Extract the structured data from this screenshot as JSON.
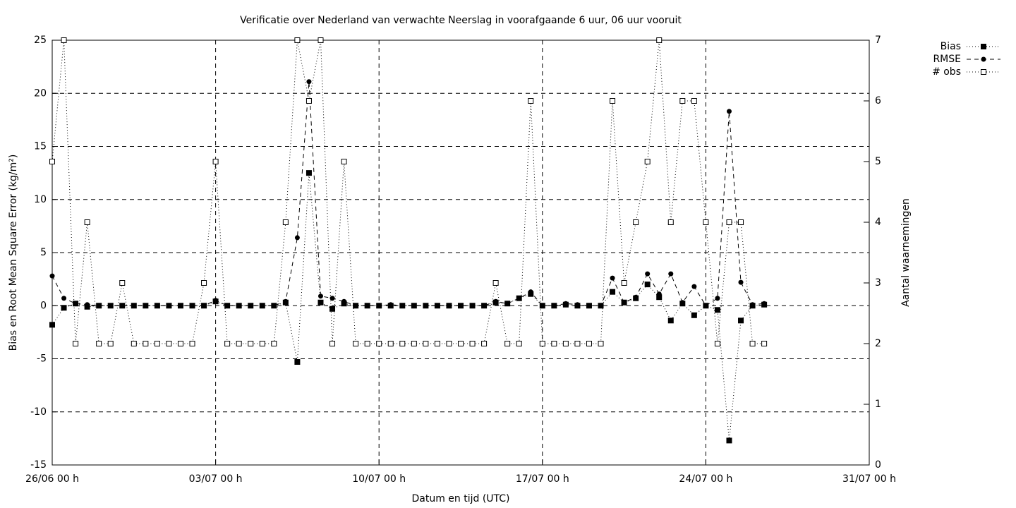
{
  "chart_data": {
    "type": "line",
    "title": "Verificatie over Nederland van verwachte Neerslag in voorafgaande 6 uur, 06 uur vooruit",
    "xlabel": "Datum en tijd (UTC)",
    "ylabel": "Bias en Root Mean Square Error (kg/m²)",
    "y2label": "Aantal waarnemingen",
    "x": [
      0,
      0.5,
      1,
      1.5,
      2,
      2.5,
      3,
      3.5,
      4,
      4.5,
      5,
      5.5,
      6,
      6.5,
      7,
      7.5,
      8,
      8.5,
      9,
      9.5,
      10,
      10.5,
      11,
      11.5,
      12,
      12.5,
      13,
      13.5,
      14,
      14.5,
      15,
      15.5,
      16,
      16.5,
      17,
      17.5,
      18,
      18.5,
      19,
      19.5,
      20,
      20.5,
      21,
      21.5,
      22,
      22.5,
      23,
      23.5,
      24,
      24.5,
      25,
      25.5,
      26,
      26.5,
      27,
      27.5,
      28,
      28.5,
      29,
      29.5,
      30,
      30.5
    ],
    "xlim": [
      0,
      35
    ],
    "xticks": [
      {
        "value": 0,
        "label": "26/06 00 h"
      },
      {
        "value": 7,
        "label": "03/07 00 h"
      },
      {
        "value": 14,
        "label": "10/07 00 h"
      },
      {
        "value": 21,
        "label": "17/07 00 h"
      },
      {
        "value": 28,
        "label": "24/07 00 h"
      },
      {
        "value": 35,
        "label": "31/07 00 h"
      }
    ],
    "ylim": [
      -15,
      25
    ],
    "yticks": [
      -15,
      -10,
      -5,
      0,
      5,
      10,
      15,
      20,
      25
    ],
    "y2lim": [
      0,
      7
    ],
    "y2ticks": [
      0,
      1,
      2,
      3,
      4,
      5,
      6,
      7
    ],
    "grid": true,
    "legend": "top-right",
    "series": [
      {
        "name": "Bias",
        "color": "#000000",
        "dash": "dotted",
        "marker": "filled-square",
        "values": [
          -1.8,
          -0.2,
          0.2,
          -0.1,
          0,
          0,
          0,
          0,
          0,
          0,
          0,
          0,
          0,
          0,
          0.4,
          0,
          0,
          0,
          0,
          0,
          0.3,
          -5.3,
          12.5,
          0.3,
          -0.3,
          0.2,
          0,
          0,
          0,
          0,
          0,
          0,
          0,
          0,
          0,
          0,
          0,
          0,
          0.3,
          0.2,
          0.7,
          1.1,
          0,
          0,
          0.1,
          0,
          0,
          0,
          1.3,
          0.3,
          0.7,
          2.0,
          0.8,
          -1.4,
          0.2,
          -0.9,
          0,
          -0.4,
          -12.7,
          -1.4,
          0,
          0.1
        ]
      },
      {
        "name": "RMSE",
        "color": "#000000",
        "dash": "dashed",
        "marker": "filled-circle",
        "values": [
          2.8,
          0.7,
          0.2,
          0.1,
          0,
          0,
          0,
          0,
          0,
          0,
          0,
          0,
          0,
          0,
          0.5,
          0,
          0,
          0,
          0,
          0,
          0.4,
          6.4,
          21.1,
          0.9,
          0.7,
          0.4,
          0,
          0,
          0,
          0.1,
          0,
          0,
          0,
          0,
          0,
          0,
          0,
          0,
          0.4,
          0.2,
          0.7,
          1.3,
          0,
          0,
          0.2,
          0.1,
          0,
          0,
          2.6,
          0.3,
          0.8,
          3.0,
          1.1,
          3.0,
          0.3,
          1.8,
          0,
          0.7,
          18.3,
          2.2,
          0.1,
          0.2
        ]
      },
      {
        "name": "# obs",
        "color": "#000000",
        "dash": "dotted",
        "marker": "open-square",
        "axis": "y2",
        "values": [
          5,
          7,
          2,
          4,
          2,
          2,
          3,
          2,
          2,
          2,
          2,
          2,
          2,
          3,
          5,
          2,
          2,
          2,
          2,
          2,
          4,
          7,
          6,
          7,
          2,
          5,
          2,
          2,
          2,
          2,
          2,
          2,
          2,
          2,
          2,
          2,
          2,
          2,
          3,
          2,
          2,
          6,
          2,
          2,
          2,
          2,
          2,
          2,
          6,
          3,
          4,
          5,
          7,
          4,
          6,
          6,
          4,
          2,
          4,
          4,
          2,
          2
        ]
      }
    ]
  }
}
